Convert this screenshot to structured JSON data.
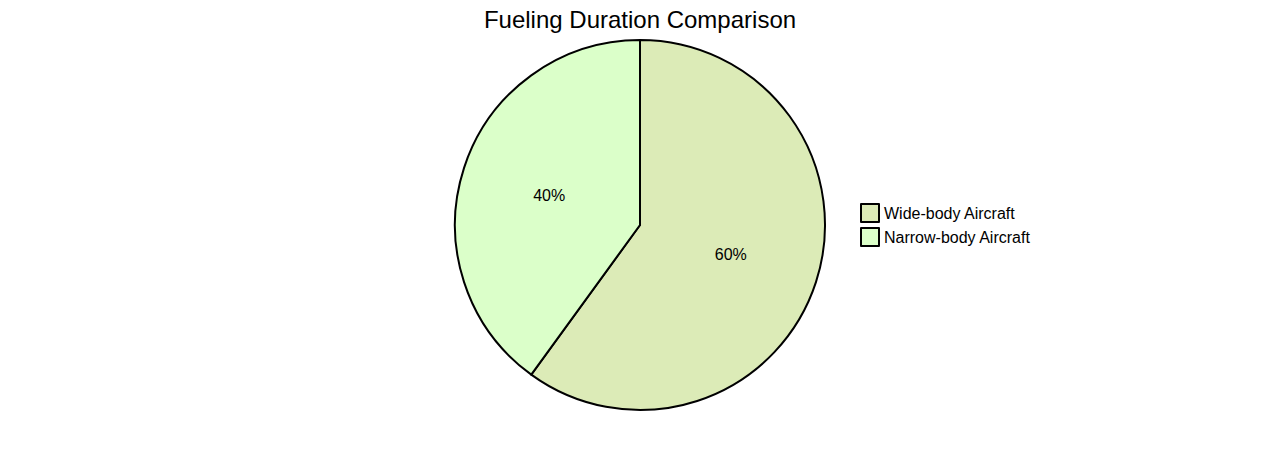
{
  "chart_data": {
    "type": "pie",
    "title": "Fueling Duration Comparison",
    "categories": [
      "Wide-body Aircraft",
      "Narrow-body Aircraft"
    ],
    "values": [
      60,
      40
    ],
    "value_labels": [
      "60%",
      "40%"
    ],
    "colors": [
      "#dcebb7",
      "#dbffc9"
    ],
    "data_labels": true,
    "legend": "right"
  }
}
